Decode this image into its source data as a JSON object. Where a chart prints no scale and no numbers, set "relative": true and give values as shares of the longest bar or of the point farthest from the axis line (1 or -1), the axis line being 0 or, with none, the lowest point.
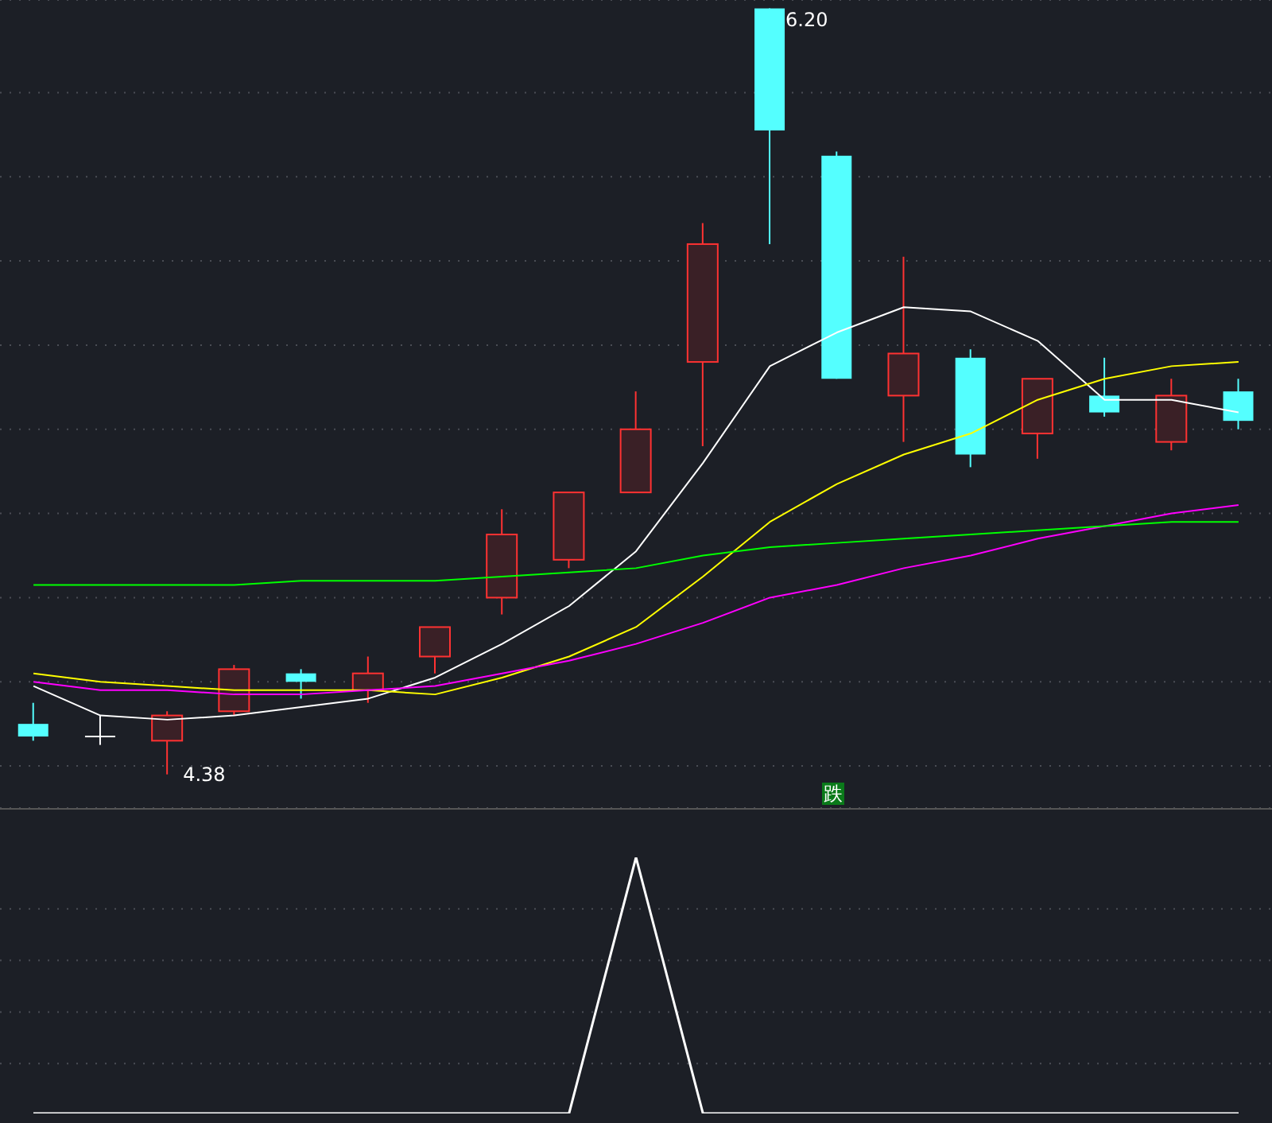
{
  "chart_data": [
    {
      "type": "candlestick",
      "categories": [
        null,
        null,
        null,
        null,
        null,
        null,
        null,
        null,
        null,
        null,
        null,
        null,
        null,
        null,
        null,
        null,
        null,
        null,
        null
      ],
      "ohlc": [
        [
          4.5,
          4.55,
          4.46,
          4.47
        ],
        [
          4.47,
          4.52,
          4.45,
          4.47
        ],
        [
          4.46,
          4.53,
          4.38,
          4.52
        ],
        [
          4.53,
          4.64,
          4.52,
          4.63
        ],
        [
          4.62,
          4.63,
          4.56,
          4.6
        ],
        [
          4.58,
          4.66,
          4.55,
          4.62
        ],
        [
          4.66,
          4.73,
          4.62,
          4.73
        ],
        [
          4.8,
          5.01,
          4.76,
          4.95
        ],
        [
          4.89,
          5.05,
          4.87,
          5.05
        ],
        [
          5.05,
          5.29,
          5.05,
          5.2
        ],
        [
          5.36,
          5.69,
          5.16,
          5.64
        ],
        [
          6.2,
          6.2,
          5.64,
          5.91
        ],
        [
          5.85,
          5.86,
          5.32,
          5.32
        ],
        [
          5.28,
          5.61,
          5.17,
          5.38
        ],
        [
          5.37,
          5.39,
          5.11,
          5.14
        ],
        [
          5.19,
          5.32,
          5.13,
          5.32
        ],
        [
          5.28,
          5.37,
          5.23,
          5.24
        ],
        [
          5.17,
          5.32,
          5.15,
          5.28
        ],
        [
          5.29,
          5.32,
          5.2,
          5.22
        ]
      ],
      "series": [
        {
          "type": "line",
          "color": "#ffffff",
          "values": [
            4.59,
            4.52,
            4.51,
            4.52,
            4.54,
            4.56,
            4.61,
            4.69,
            4.78,
            4.91,
            5.12,
            5.35,
            5.43,
            5.49,
            5.48,
            5.41,
            5.27,
            5.27,
            5.24
          ]
        },
        {
          "type": "line",
          "color": "#ffff00",
          "values": [
            4.62,
            4.6,
            4.59,
            4.58,
            4.58,
            4.58,
            4.57,
            4.61,
            4.66,
            4.73,
            4.85,
            4.98,
            5.07,
            5.14,
            5.19,
            5.27,
            5.32,
            5.35,
            5.36
          ]
        },
        {
          "type": "line",
          "color": "#ff00ff",
          "values": [
            4.6,
            4.58,
            4.58,
            4.57,
            4.57,
            4.58,
            4.59,
            4.62,
            4.65,
            4.69,
            4.74,
            4.8,
            4.83,
            4.87,
            4.9,
            4.94,
            4.97,
            5.0,
            5.02
          ]
        },
        {
          "type": "line",
          "color": "#00ff00",
          "values": [
            4.83,
            4.83,
            4.83,
            4.83,
            4.84,
            4.84,
            4.84,
            4.85,
            4.86,
            4.87,
            4.9,
            4.92,
            4.93,
            4.94,
            4.95,
            4.96,
            4.97,
            4.98,
            4.98
          ]
        }
      ],
      "ylim": [
        4.3,
        6.22
      ],
      "yticks": [
        {
          "value": 4.4,
          "label": null
        },
        {
          "value": 4.6,
          "label": null
        },
        {
          "value": 4.8,
          "label": null
        },
        {
          "value": 5.0,
          "label": null
        },
        {
          "value": 5.2,
          "label": null
        },
        {
          "value": 5.4,
          "label": null
        },
        {
          "value": 5.6,
          "label": null
        },
        {
          "value": 5.8,
          "label": null
        },
        {
          "value": 6.0,
          "label": null
        }
      ],
      "tick_labels": false,
      "grid": "y",
      "marker": "none",
      "line_style": "solid",
      "annotations": [
        "6.20",
        "4.38",
        "跌"
      ]
    },
    {
      "type": "line",
      "relative": true,
      "categories": [
        null,
        null,
        null,
        null,
        null,
        null,
        null,
        null,
        null,
        null,
        null,
        null,
        null,
        null,
        null,
        null,
        null,
        null,
        null
      ],
      "series": [
        {
          "color": "#ffffff",
          "values": [
            0,
            0,
            0,
            0,
            0,
            0,
            0,
            0,
            0,
            1,
            0,
            0,
            0,
            0,
            0,
            0,
            0,
            0,
            0
          ]
        }
      ],
      "tick_labels": false,
      "grid": "y",
      "marker": "none",
      "line_style": "solid"
    }
  ]
}
